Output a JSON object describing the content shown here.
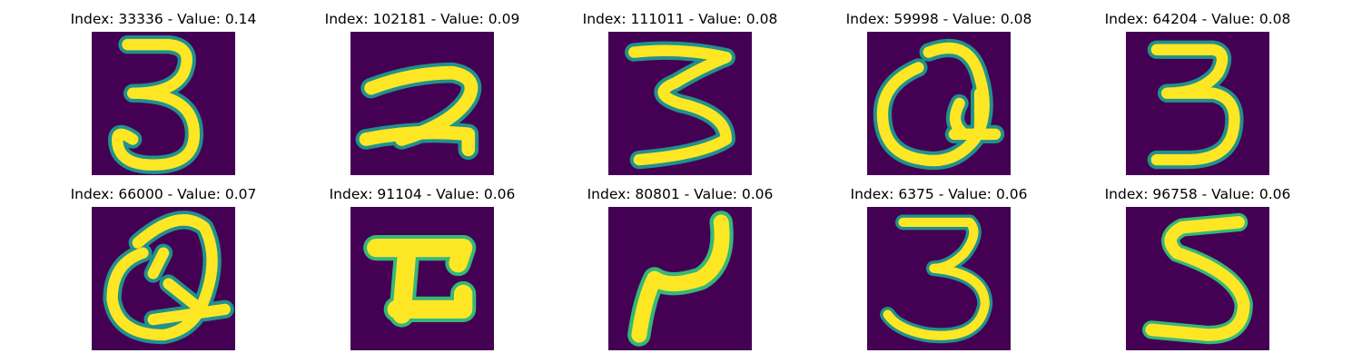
{
  "background_color": "#440154",
  "stroke_colors": [
    "#fde725",
    "#35b779",
    "#21918c"
  ],
  "panels": [
    {
      "title": "Index: 33336 - Value: 0.14",
      "digit": "3"
    },
    {
      "title": "Index: 102181 - Value: 0.09",
      "digit": "2"
    },
    {
      "title": "Index: 111011 - Value: 0.08",
      "digit": "3"
    },
    {
      "title": "Index: 59998 - Value: 0.08",
      "digit": "loop"
    },
    {
      "title": "Index: 64204 - Value: 0.08",
      "digit": "3"
    },
    {
      "title": "Index: 66000 - Value: 0.07",
      "digit": "loop"
    },
    {
      "title": "Index: 91104 - Value: 0.06",
      "digit": "z"
    },
    {
      "title": "Index: 80801 - Value: 0.06",
      "digit": "r"
    },
    {
      "title": "Index: 6375 - Value: 0.06",
      "digit": "3"
    },
    {
      "title": "Index: 96758 - Value: 0.06",
      "digit": "5"
    }
  ]
}
